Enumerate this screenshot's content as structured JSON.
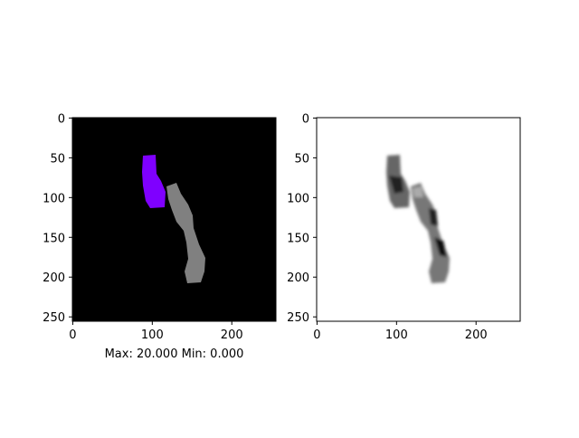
{
  "chart_data": [
    {
      "type": "image",
      "xlim": [
        -0.5,
        255.5
      ],
      "ylim": [
        255.5,
        -0.5
      ],
      "xticks": [
        0,
        100,
        200
      ],
      "yticks": [
        0,
        50,
        100,
        150,
        200,
        250
      ],
      "xlabel": "Max: 20.000 Min: 0.000"
    },
    {
      "type": "image",
      "xlim": [
        -0.5,
        255.5
      ],
      "ylim": [
        255.5,
        -0.5
      ],
      "xticks": [
        0,
        100,
        200
      ],
      "yticks": [
        0,
        50,
        100,
        150,
        200,
        250
      ]
    }
  ]
}
